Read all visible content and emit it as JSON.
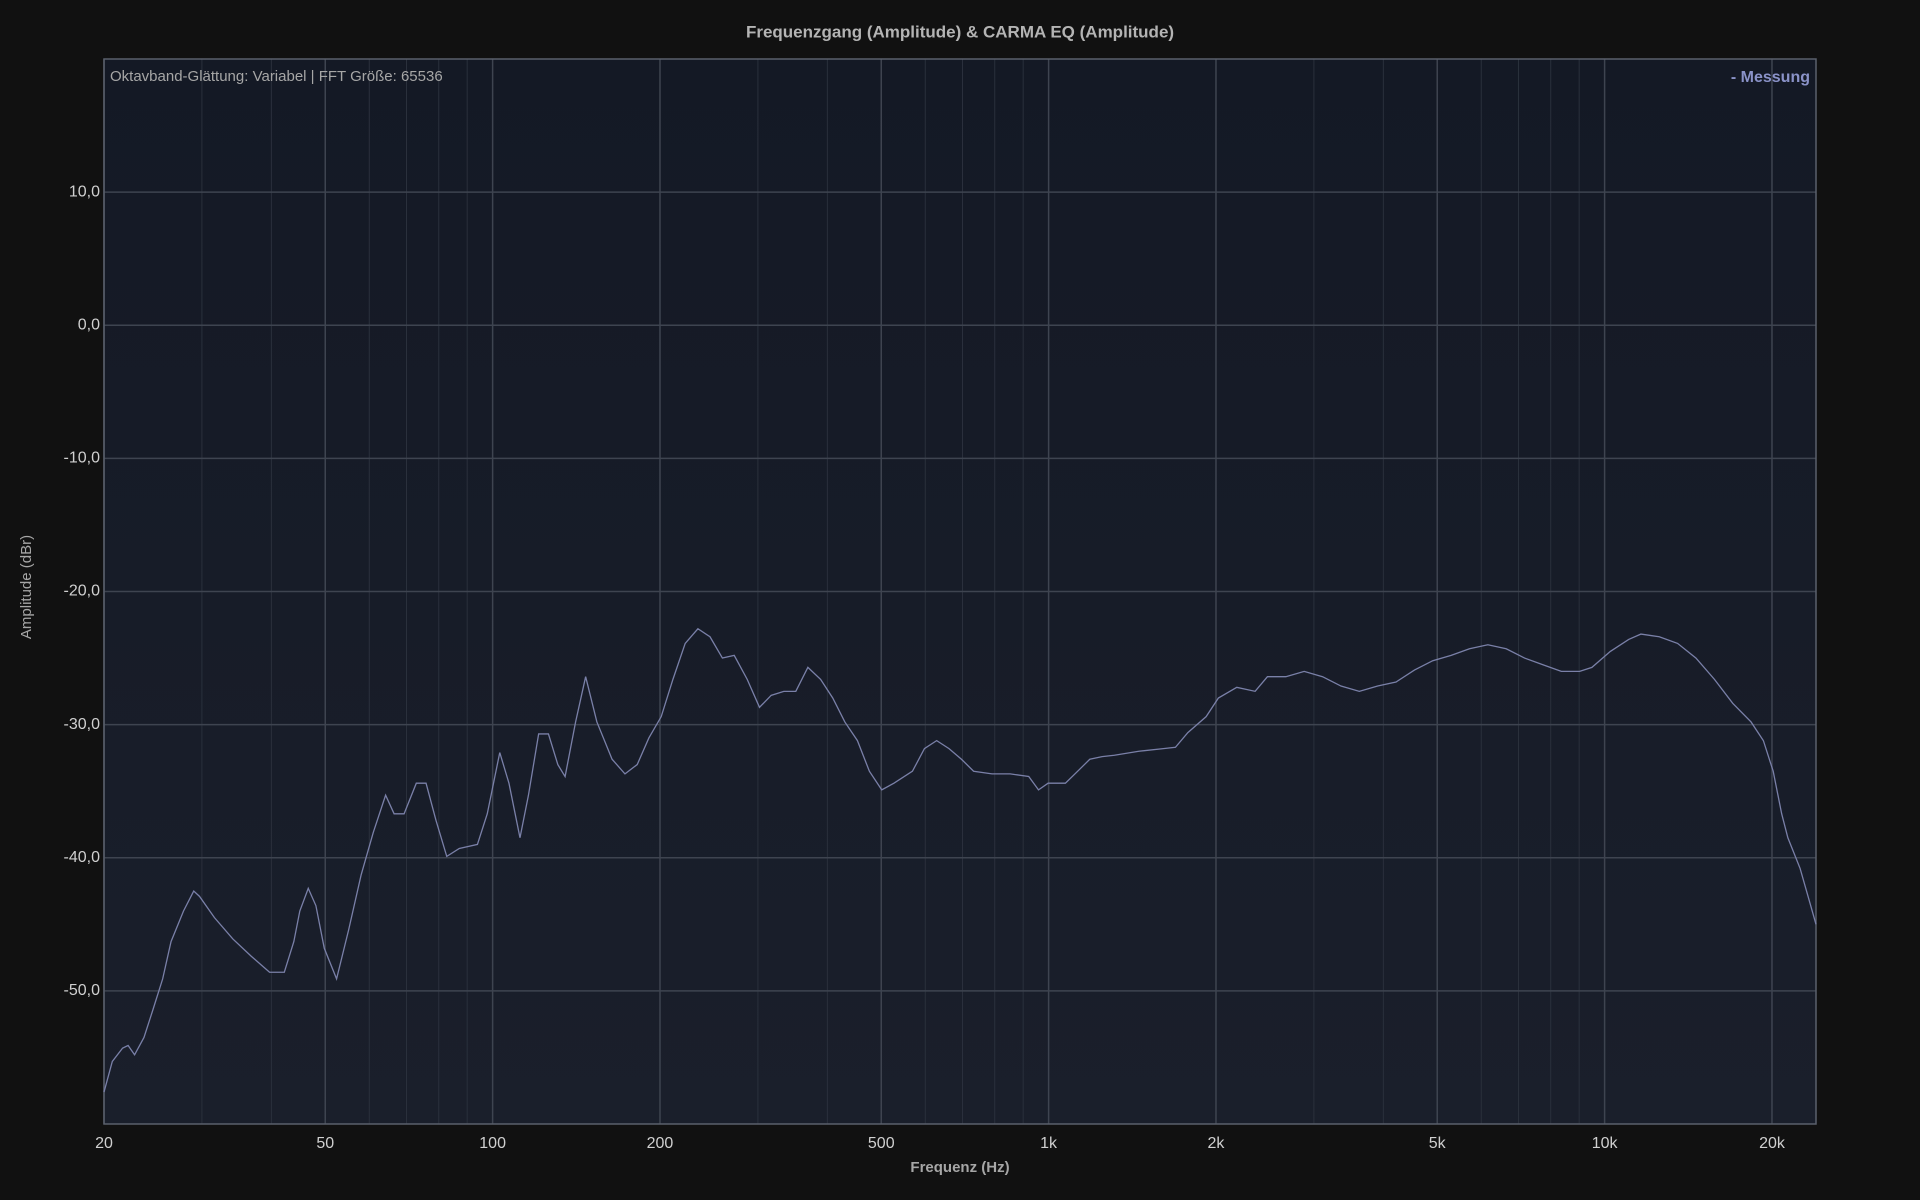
{
  "chart_data": {
    "type": "line",
    "title": "Frequenzgang (Amplitude) & CARMA EQ (Amplitude)",
    "annotation": "Oktavband-Glättung: Variabel | FFT Größe: 65536",
    "x_label": "Frequenz (Hz)",
    "y_label": "Amplitude (dBr)",
    "x_scale": "log",
    "grid": true,
    "legend_position": "top-right",
    "xlim": [
      20,
      24000
    ],
    "ylim": [
      -60,
      20
    ],
    "xticks": [
      20,
      50,
      100,
      200,
      500,
      {
        "value": 1000,
        "label": "1k"
      },
      {
        "value": 2000,
        "label": "2k"
      },
      {
        "value": 5000,
        "label": "5k"
      },
      {
        "value": 10000,
        "label": "10k"
      },
      {
        "value": 20000,
        "label": "20k"
      }
    ],
    "x_minor_ticks": [
      30,
      40,
      60,
      70,
      80,
      90,
      300,
      400,
      600,
      700,
      800,
      900,
      3000,
      4000,
      6000,
      7000,
      8000,
      9000
    ],
    "yticks": [
      {
        "value": 10,
        "label": "10,0"
      },
      {
        "value": 0,
        "label": "0,0"
      },
      {
        "value": -10,
        "label": "-10,0"
      },
      {
        "value": -20,
        "label": "-20,0"
      },
      {
        "value": -30,
        "label": "-30,0"
      },
      {
        "value": -40,
        "label": "-40,0"
      },
      {
        "value": -50,
        "label": "-50,0"
      }
    ],
    "x": [
      20,
      20.7,
      21.6,
      22.1,
      22.7,
      23.6,
      24.5,
      25.5,
      26.4,
      27.8,
      29.0,
      29.7,
      31.6,
      34.1,
      36.8,
      39.7,
      42.2,
      43.9,
      45.0,
      46.6,
      48.1,
      49.8,
      52.4,
      55.1,
      58.0,
      61.0,
      64.2,
      66.5,
      69.3,
      72.9,
      75.9,
      79.1,
      82.7,
      87.1,
      93.9,
      97.8,
      103,
      107,
      112,
      116,
      121,
      126,
      131,
      135,
      141,
      147,
      154,
      164,
      173,
      182,
      191,
      201,
      211,
      222,
      234,
      246,
      259,
      272,
      287,
      302,
      317,
      334,
      351,
      369,
      389,
      409,
      430,
      453,
      476,
      501,
      527,
      569,
      598,
      629,
      662,
      697,
      733,
      791,
      853,
      921,
      959,
      998,
      1072,
      1128,
      1186,
      1248,
      1313,
      1453,
      1608,
      1691,
      1780,
      1920,
      2020,
      2180,
      2352,
      2475,
      2671,
      2882,
      3110,
      3356,
      3621,
      3907,
      4216,
      4549,
      4908,
      5296,
      5715,
      6166,
      6653,
      7179,
      7746,
      8358,
      9018,
      9488,
      10240,
      11050,
      11620,
      12540,
      13530,
      14600,
      15760,
      17000,
      18340,
      19300,
      20100,
      20820,
      21360,
      22470,
      24000
    ],
    "series": [
      {
        "name": "- Messung",
        "color": "#7a80a8",
        "values": [
          -57.6,
          -55.3,
          -54.3,
          -54.1,
          -54.8,
          -53.5,
          -51.4,
          -49.1,
          -46.3,
          -44.0,
          -42.5,
          -42.9,
          -44.5,
          -46.1,
          -47.4,
          -48.6,
          -48.6,
          -46.3,
          -44.0,
          -42.3,
          -43.6,
          -46.8,
          -49.1,
          -45.4,
          -41.3,
          -38.1,
          -35.3,
          -36.7,
          -36.7,
          -34.4,
          -34.4,
          -37.2,
          -39.9,
          -39.3,
          -39.0,
          -36.7,
          -32.1,
          -34.4,
          -38.5,
          -35.3,
          -30.7,
          -30.7,
          -33.0,
          -33.9,
          -29.8,
          -26.4,
          -29.8,
          -32.6,
          -33.7,
          -33.0,
          -31.0,
          -29.4,
          -26.6,
          -23.9,
          -22.8,
          -23.4,
          -25.0,
          -24.8,
          -26.6,
          -28.7,
          -27.8,
          -27.5,
          -27.5,
          -25.7,
          -26.6,
          -28.0,
          -29.8,
          -31.2,
          -33.5,
          -34.9,
          -34.4,
          -33.5,
          -31.8,
          -31.2,
          -31.8,
          -32.6,
          -33.5,
          -33.7,
          -33.7,
          -33.9,
          -34.9,
          -34.4,
          -34.4,
          -33.5,
          -32.6,
          -32.4,
          -32.3,
          -32.0,
          -31.8,
          -31.7,
          -30.6,
          -29.4,
          -28.0,
          -27.2,
          -27.5,
          -26.4,
          -26.4,
          -26.0,
          -26.4,
          -27.1,
          -27.5,
          -27.1,
          -26.8,
          -25.9,
          -25.2,
          -24.8,
          -24.3,
          -24.0,
          -24.3,
          -25.0,
          -25.5,
          -26.0,
          -26.0,
          -25.7,
          -24.5,
          -23.6,
          -23.2,
          -23.4,
          -23.9,
          -25.0,
          -26.6,
          -28.4,
          -29.8,
          -31.2,
          -33.5,
          -36.7,
          -38.5,
          -40.8,
          -45.0
        ]
      }
    ]
  }
}
